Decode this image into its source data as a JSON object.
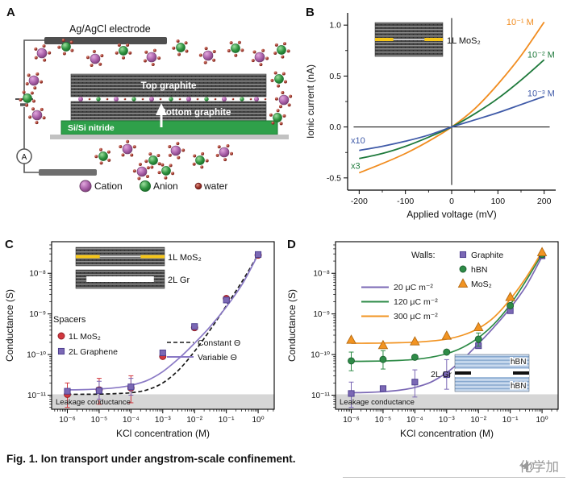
{
  "caption": "Fig. 1. Ion transport under angstrom-scale confinement.",
  "watermark": "化学加",
  "panelA": {
    "label": "A",
    "electrode_label": "Ag/AgCl electrode",
    "top_graphite_label": "Top graphite",
    "bottom_graphite_label": "Bottom graphite",
    "substrate_label": "Si/Si nitride",
    "ammeter_label": "A",
    "legend": [
      {
        "name": "cation",
        "label": "Cation",
        "color": "#a85fa8"
      },
      {
        "name": "anion",
        "label": "Anion",
        "color": "#2f9440"
      },
      {
        "name": "water",
        "label": "water",
        "color": "#9c3328"
      }
    ]
  },
  "chart_data": [
    {
      "id": "B",
      "label": "B",
      "type": "line",
      "xlabel": "Applied voltage (mV)",
      "ylabel": "Ionic current (nA)",
      "xlim": [
        -225,
        225
      ],
      "ylim": [
        -0.62,
        1.12
      ],
      "xticks": [
        -200,
        -100,
        0,
        100,
        200
      ],
      "xtick_labels": [
        "-200",
        "-100",
        "0",
        "100",
        "200"
      ],
      "yticks": [
        -0.5,
        0,
        0.5,
        1
      ],
      "ytick_labels": [
        "-0.5",
        "0.0",
        "0.5",
        "1.0"
      ],
      "inset_label": "1L MoS₂",
      "series": [
        {
          "name": "10⁻¹ M",
          "color": "#f18c1f",
          "x": [
            -200,
            -150,
            -100,
            -50,
            0,
            50,
            100,
            150,
            200
          ],
          "y": [
            -0.45,
            -0.36,
            -0.26,
            -0.14,
            0,
            0.18,
            0.42,
            0.7,
            1.03
          ]
        },
        {
          "name": "10⁻² M",
          "color": "#1f7a3c",
          "x": [
            -200,
            -150,
            -100,
            -50,
            0,
            50,
            100,
            150,
            200
          ],
          "y": [
            -0.31,
            -0.26,
            -0.19,
            -0.1,
            0,
            0.13,
            0.28,
            0.46,
            0.66
          ]
        },
        {
          "name": "10⁻³ M",
          "color": "#3f5aa8",
          "x": [
            -200,
            -150,
            -100,
            -50,
            0,
            50,
            100,
            150,
            200
          ],
          "y": [
            -0.23,
            -0.19,
            -0.14,
            -0.08,
            0,
            0.07,
            0.14,
            0.22,
            0.3
          ]
        }
      ],
      "scale_notes": [
        {
          "text": "x10",
          "color": "#3f5aa8"
        },
        {
          "text": "x3",
          "color": "#1f7a3c"
        }
      ]
    },
    {
      "id": "C",
      "label": "C",
      "type": "scatter",
      "xscale": "log",
      "yscale": "log",
      "xlabel": "KCl concentration (M)",
      "ylabel": "Conductance (S)",
      "xlim": [
        3.2e-07,
        3.2
      ],
      "ylim": [
        4.5e-12,
        6e-08
      ],
      "xticks": [
        1e-06,
        1e-05,
        0.0001,
        0.001,
        0.01,
        0.1,
        1
      ],
      "xtick_labels": [
        "10⁻⁶",
        "10⁻⁵",
        "10⁻⁴",
        "10⁻³",
        "10⁻²",
        "10⁻¹",
        "10⁰"
      ],
      "yticks": [
        1e-11,
        1e-10,
        1e-09,
        1e-08
      ],
      "ytick_labels": [
        "10⁻¹¹",
        "10⁻¹⁰",
        "10⁻⁹",
        "10⁻⁸"
      ],
      "leakage": {
        "top": 1.05e-11,
        "label": "Leakage conductance"
      },
      "legend_title": "Spacers",
      "inset_labels": [
        "1L MoS₂",
        "2L Gr"
      ],
      "scatter": [
        {
          "name": "1L MoS₂",
          "marker": "circle",
          "color": "#d2383f",
          "edge": "#8f1f28",
          "x": [
            1e-06,
            1e-05,
            0.0001,
            0.001,
            0.01,
            0.1,
            1
          ],
          "y": [
            1.05e-11,
            1.35e-11,
            1.5e-11,
            9e-11,
            4.6e-10,
            2.4e-09,
            2.8e-08
          ],
          "err_lo": [
            5e-12,
            6e-12,
            6.5e-12,
            null,
            null,
            null,
            null
          ],
          "err_hi": [
            2e-11,
            2.6e-11,
            3e-11,
            null,
            null,
            null,
            null
          ]
        },
        {
          "name": "2L Graphene",
          "marker": "square",
          "color": "#7b68b5",
          "edge": "#4a3c8c",
          "x": [
            1e-06,
            1e-05,
            0.0001,
            0.001,
            0.01,
            0.1,
            1
          ],
          "y": [
            1.25e-11,
            1.3e-11,
            1.6e-11,
            1.1e-10,
            4.9e-10,
            2.2e-09,
            2.9e-08
          ],
          "err_lo": [
            null,
            8e-12,
            1e-11,
            null,
            null,
            null,
            null
          ],
          "err_hi": [
            null,
            2.2e-11,
            2.6e-11,
            null,
            null,
            null,
            null
          ]
        }
      ],
      "lines": [
        {
          "name": "Constant Θ",
          "style": "dashed",
          "color": "#1a1a1a",
          "x": [
            1e-06,
            3.2e-06,
            1e-05,
            3.2e-05,
            0.0001,
            0.00032,
            0.001,
            0.0032,
            0.01,
            0.032,
            0.1,
            0.32,
            1
          ],
          "y": [
            1.05e-11,
            1.05e-11,
            1.06e-11,
            1.09e-11,
            1.15e-11,
            1.35e-11,
            2e-11,
            4.2e-11,
            1.2e-10,
            4.2e-10,
            1.6e-09,
            6.5e-09,
            2.9e-08
          ]
        },
        {
          "name": "Variable Θ",
          "style": "solid",
          "color": "#8a79c5",
          "x": [
            1e-06,
            3.2e-06,
            1e-05,
            3.2e-05,
            0.0001,
            0.00032,
            0.001,
            0.0032,
            0.01,
            0.032,
            0.1,
            0.32,
            1
          ],
          "y": [
            1.35e-11,
            1.37e-11,
            1.42e-11,
            1.52e-11,
            1.75e-11,
            2.3e-11,
            3.8e-11,
            8e-11,
            1.9e-10,
            5e-10,
            1.5e-09,
            5.5e-09,
            2.9e-08
          ]
        }
      ]
    },
    {
      "id": "D",
      "label": "D",
      "type": "scatter",
      "xscale": "log",
      "yscale": "log",
      "xlabel": "KCl concentration (M)",
      "ylabel": "Conductance (S)",
      "xlim": [
        3.2e-07,
        3.2
      ],
      "ylim": [
        4.5e-12,
        6e-08
      ],
      "xticks": [
        1e-06,
        1e-05,
        0.0001,
        0.001,
        0.01,
        0.1,
        1
      ],
      "xtick_labels": [
        "10⁻⁶",
        "10⁻⁵",
        "10⁻⁴",
        "10⁻³",
        "10⁻²",
        "10⁻¹",
        "10⁰"
      ],
      "yticks": [
        1e-11,
        1e-10,
        1e-09,
        1e-08
      ],
      "ytick_labels": [
        "10⁻¹¹",
        "10⁻¹⁰",
        "10⁻⁹",
        "10⁻⁸"
      ],
      "leakage": {
        "top": 1.05e-11,
        "label": "Leakage conductance"
      },
      "legend_title": "Walls:",
      "annotation": "2L Gr",
      "inset_labels": [
        "hBN",
        "hBN"
      ],
      "scatter": [
        {
          "name": "Graphite",
          "marker": "square",
          "color": "#7b68b5",
          "edge": "#4a3c8c",
          "x": [
            1e-06,
            1e-05,
            0.0001,
            0.001,
            0.01,
            0.1,
            1
          ],
          "y": [
            1.1e-11,
            1.45e-11,
            2.1e-11,
            3.2e-11,
            1.65e-10,
            1.2e-09,
            2.7e-08
          ],
          "err_lo": [
            5e-12,
            null,
            9e-12,
            1.4e-11,
            null,
            null,
            null
          ],
          "err_hi": [
            2.1e-11,
            null,
            4.2e-11,
            7.5e-11,
            null,
            null,
            null
          ]
        },
        {
          "name": "hBN",
          "marker": "circle",
          "color": "#2e8b47",
          "edge": "#1c6130",
          "x": [
            1e-06,
            1e-05,
            0.0001,
            0.001,
            0.01,
            0.1,
            1
          ],
          "y": [
            7e-11,
            7.6e-11,
            8.6e-11,
            1.15e-10,
            2.4e-10,
            1.6e-09,
            2.9e-08
          ],
          "err_lo": [
            4e-11,
            4.4e-11,
            null,
            null,
            1.6e-10,
            null,
            null
          ],
          "err_hi": [
            1.15e-10,
            1.25e-10,
            null,
            null,
            3.4e-10,
            null,
            null
          ]
        },
        {
          "name": "MoS₂",
          "marker": "triangle",
          "color": "#f29422",
          "edge": "#b56a12",
          "x": [
            1e-06,
            1e-05,
            0.0001,
            0.001,
            0.01,
            0.1,
            1
          ],
          "y": [
            2.3e-10,
            1.7e-10,
            2.1e-10,
            2.9e-10,
            4.7e-10,
            2.6e-09,
            3.3e-08
          ],
          "err_lo": [
            null,
            null,
            null,
            null,
            null,
            null,
            null
          ],
          "err_hi": [
            null,
            null,
            null,
            null,
            null,
            null,
            null
          ]
        }
      ],
      "lines": [
        {
          "name": "20 μC m⁻²",
          "style": "solid",
          "color": "#7b68b5",
          "x": [
            1e-06,
            3.2e-06,
            1e-05,
            3.2e-05,
            0.0001,
            0.00032,
            0.001,
            0.0032,
            0.01,
            0.032,
            0.1,
            0.32,
            1
          ],
          "y": [
            1.15e-11,
            1.17e-11,
            1.22e-11,
            1.32e-11,
            1.55e-11,
            2.1e-11,
            3.6e-11,
            7.6e-11,
            1.85e-10,
            4.9e-10,
            1.4e-09,
            5e-09,
            2.6e-08
          ]
        },
        {
          "name": "120 μC m⁻²",
          "style": "solid",
          "color": "#2e8b47",
          "x": [
            1e-06,
            3.2e-06,
            1e-05,
            3.2e-05,
            0.0001,
            0.00032,
            0.001,
            0.0032,
            0.01,
            0.032,
            0.1,
            0.32,
            1
          ],
          "y": [
            6.8e-11,
            6.85e-11,
            6.95e-11,
            7.15e-11,
            7.6e-11,
            8.6e-11,
            1.05e-10,
            1.5e-10,
            2.6e-10,
            5.8e-10,
            1.7e-09,
            6.8e-09,
            3e-08
          ]
        },
        {
          "name": "300 μC m⁻²",
          "style": "solid",
          "color": "#f29422",
          "x": [
            1e-06,
            3.2e-06,
            1e-05,
            3.2e-05,
            0.0001,
            0.00032,
            0.001,
            0.0032,
            0.01,
            0.032,
            0.1,
            0.32,
            1
          ],
          "y": [
            1.9e-10,
            1.9e-10,
            1.92e-10,
            1.96e-10,
            2.02e-10,
            2.15e-10,
            2.4e-10,
            3e-10,
            4.4e-10,
            8.5e-10,
            2.3e-09,
            8e-09,
            3.4e-08
          ]
        }
      ]
    }
  ]
}
